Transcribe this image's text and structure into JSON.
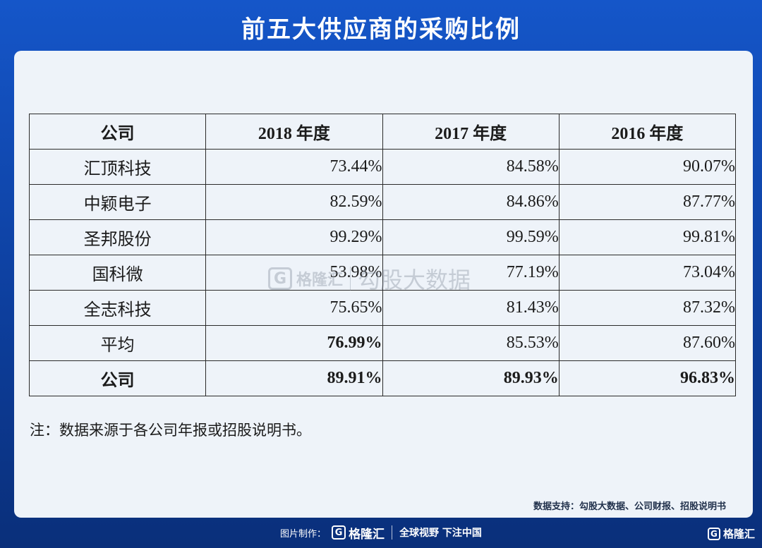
{
  "title": "前五大供应商的采购比例",
  "table": {
    "headers": [
      "公司",
      "2018 年度",
      "2017 年度",
      "2016 年度"
    ],
    "rows": [
      {
        "name": "汇顶科技",
        "v2018": "73.44%",
        "v2017": "84.58%",
        "v2016": "90.07%"
      },
      {
        "name": "中颖电子",
        "v2018": "82.59%",
        "v2017": "84.86%",
        "v2016": "87.77%"
      },
      {
        "name": "圣邦股份",
        "v2018": "99.29%",
        "v2017": "99.59%",
        "v2016": "99.81%"
      },
      {
        "name": "国科微",
        "v2018": "53.98%",
        "v2017": "77.19%",
        "v2016": "73.04%"
      },
      {
        "name": "全志科技",
        "v2018": "75.65%",
        "v2017": "81.43%",
        "v2016": "87.32%"
      },
      {
        "name": "平均",
        "v2018": "76.99%",
        "v2017": "85.53%",
        "v2016": "87.60%"
      },
      {
        "name": "公司",
        "v2018": "89.91%",
        "v2017": "89.93%",
        "v2016": "96.83%"
      }
    ]
  },
  "note": "注：数据来源于各公司年报或招股说明书。",
  "source": "数据支持：勾股大数据、公司财报、招股说明书",
  "watermark": {
    "logo": "G",
    "brand": "格隆汇",
    "text": "勾股大数据"
  },
  "footer": {
    "label": "图片制作：",
    "logo": "G",
    "brand": "格隆汇",
    "slogan": "全球视野 下注中国"
  },
  "corner": {
    "logo": "G",
    "brand": "格隆汇"
  }
}
